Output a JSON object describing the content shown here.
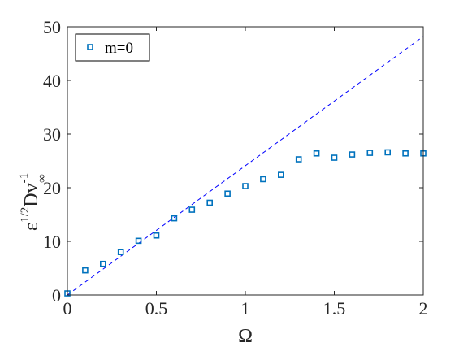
{
  "colors": {
    "marker": "#0072BD",
    "line": "#0000FF",
    "axis": "#262626",
    "background": "#FFFFFF"
  },
  "chart_data": {
    "type": "scatter",
    "xlabel": "Ω",
    "ylabel": {
      "base": "ε",
      "base_sup": "1/2",
      "main": "Dv",
      "main_sup": "-1",
      "main_sub": "∞"
    },
    "xlim": [
      0,
      2
    ],
    "ylim": [
      0,
      50
    ],
    "x_ticks": [
      0,
      0.5,
      1,
      1.5,
      2
    ],
    "x_tick_labels": [
      "0",
      "0.5",
      "1",
      "1.5",
      "2"
    ],
    "y_ticks": [
      0,
      10,
      20,
      30,
      40,
      50
    ],
    "y_tick_labels": [
      "0",
      "10",
      "20",
      "30",
      "40",
      "50"
    ],
    "grid": false,
    "legend_position": "top-left",
    "series": [
      {
        "name": "m=0",
        "style": "square-markers",
        "x": [
          0,
          0.1,
          0.2,
          0.3,
          0.4,
          0.5,
          0.6,
          0.7,
          0.8,
          0.9,
          1.0,
          1.1,
          1.2,
          1.3,
          1.4,
          1.5,
          1.6,
          1.7,
          1.8,
          1.9,
          2.0
        ],
        "y": [
          0.3,
          4.6,
          5.8,
          8.0,
          10.1,
          11.1,
          14.3,
          15.9,
          17.2,
          18.9,
          20.3,
          21.6,
          22.4,
          25.3,
          26.4,
          25.6,
          26.2,
          26.5,
          26.6,
          26.4,
          26.4
        ]
      },
      {
        "style": "dashed-line",
        "x": [
          0,
          2
        ],
        "y": [
          0,
          48.2
        ]
      }
    ]
  }
}
